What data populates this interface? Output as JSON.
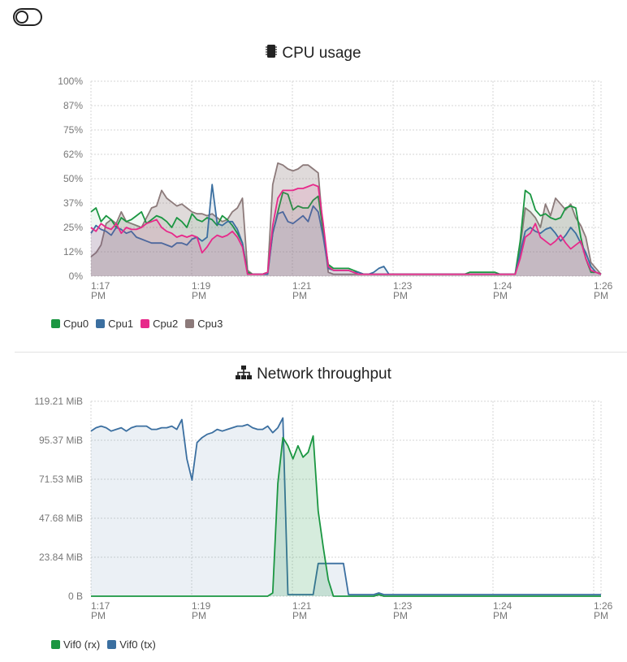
{
  "toggle": {
    "icon": "toggle-icon"
  },
  "charts": [
    {
      "id": "cpu",
      "icon": "cpu-icon",
      "chart_data": {
        "type": "area",
        "title": "CPU usage",
        "x_tick_labels": [
          [
            "1:17",
            "PM"
          ],
          [
            "1:19",
            "PM"
          ],
          [
            "1:21",
            "PM"
          ],
          [
            "1:23",
            "PM"
          ],
          [
            "1:24",
            "PM"
          ],
          [
            "1:26",
            "PM"
          ]
        ],
        "y_tick_labels": [
          "0%",
          "12%",
          "25%",
          "37%",
          "50%",
          "62%",
          "75%",
          "87%",
          "100%"
        ],
        "ylim": [
          0,
          100
        ],
        "grid": true,
        "legend_position": "bottom-left",
        "x_minutes": [
          0,
          0.1,
          0.2,
          0.3,
          0.4,
          0.5,
          0.6,
          0.7,
          0.8,
          0.9,
          1.0,
          1.1,
          1.2,
          1.3,
          1.4,
          1.5,
          1.6,
          1.7,
          1.8,
          1.9,
          2.0,
          2.1,
          2.2,
          2.3,
          2.4,
          2.5,
          2.6,
          2.7,
          2.8,
          2.9,
          3.0,
          3.1,
          3.2,
          3.3,
          3.4,
          3.5,
          3.6,
          3.7,
          3.8,
          3.9,
          4.0,
          4.1,
          4.2,
          4.3,
          4.4,
          4.5,
          4.6,
          4.7,
          4.8,
          4.9,
          5.0,
          5.1,
          5.2,
          5.3,
          5.4,
          5.5,
          5.6,
          5.7,
          5.8,
          5.9,
          6.0,
          6.1,
          6.2,
          6.3,
          6.4,
          6.5,
          6.6,
          6.7,
          6.8,
          6.9,
          7.0,
          7.1,
          7.2,
          7.3,
          7.4,
          7.5,
          7.6,
          7.7,
          7.8,
          7.9,
          8.0,
          8.1,
          8.2,
          8.3,
          8.4,
          8.5,
          8.6,
          8.7,
          8.8,
          8.9,
          9.0,
          9.1,
          9.2,
          9.3,
          9.4,
          9.5,
          9.6,
          9.7,
          9.8,
          9.9,
          10.0,
          10.1
        ],
        "series": [
          {
            "name": "Cpu0",
            "color": "#1a9641",
            "values": [
              33,
              35,
              28,
              31,
              29,
              25,
              30,
              28,
              29,
              31,
              33,
              27,
              29,
              31,
              30,
              28,
              25,
              30,
              28,
              25,
              32,
              29,
              28,
              30,
              29,
              26,
              31,
              29,
              26,
              22,
              17,
              2,
              1,
              1,
              1,
              2,
              22,
              33,
              43,
              42,
              34,
              36,
              35,
              35,
              39,
              41,
              23,
              6,
              4,
              4,
              4,
              4,
              3,
              2,
              1,
              1,
              1,
              1,
              1,
              1,
              1,
              1,
              1,
              1,
              1,
              1,
              1,
              1,
              1,
              1,
              1,
              1,
              1,
              1,
              1,
              2,
              2,
              2,
              2,
              2,
              2,
              1,
              1,
              1,
              1,
              18,
              44,
              42,
              34,
              31,
              32,
              30,
              29,
              30,
              35,
              36,
              35,
              20,
              9,
              2,
              2,
              1
            ]
          },
          {
            "name": "Cpu1",
            "color": "#3b6fa0",
            "values": [
              22,
              26,
              24,
              23,
              21,
              25,
              24,
              22,
              23,
              20,
              19,
              18,
              17,
              17,
              17,
              16,
              15,
              17,
              17,
              16,
              19,
              20,
              18,
              20,
              47,
              27,
              26,
              28,
              28,
              24,
              17,
              1,
              1,
              1,
              1,
              1,
              22,
              32,
              33,
              28,
              27,
              29,
              31,
              28,
              36,
              33,
              20,
              4,
              3,
              3,
              3,
              3,
              2,
              2,
              1,
              1,
              2,
              4,
              5,
              1,
              1,
              1,
              1,
              1,
              1,
              1,
              1,
              1,
              1,
              1,
              1,
              1,
              1,
              1,
              1,
              1,
              1,
              1,
              1,
              1,
              1,
              1,
              1,
              1,
              1,
              12,
              23,
              25,
              23,
              22,
              24,
              25,
              22,
              18,
              21,
              25,
              22,
              17,
              12,
              5,
              2,
              1
            ]
          },
          {
            "name": "Cpu2",
            "color": "#e7298a",
            "values": [
              25,
              23,
              27,
              25,
              24,
              27,
              22,
              25,
              24,
              24,
              25,
              27,
              28,
              29,
              25,
              23,
              22,
              20,
              21,
              20,
              21,
              20,
              12,
              15,
              19,
              21,
              20,
              21,
              23,
              20,
              15,
              1,
              1,
              1,
              1,
              2,
              26,
              40,
              44,
              44,
              44,
              45,
              45,
              46,
              47,
              46,
              27,
              5,
              3,
              3,
              3,
              3,
              2,
              1,
              1,
              1,
              1,
              1,
              1,
              1,
              1,
              1,
              1,
              1,
              1,
              1,
              1,
              1,
              1,
              1,
              1,
              1,
              1,
              1,
              1,
              1,
              1,
              1,
              1,
              1,
              1,
              1,
              1,
              1,
              1,
              9,
              20,
              22,
              27,
              20,
              18,
              16,
              18,
              21,
              17,
              14,
              16,
              18,
              9,
              3,
              2,
              1
            ]
          },
          {
            "name": "Cpu3",
            "color": "#8c7a7a",
            "values": [
              10,
              12,
              16,
              27,
              29,
              27,
              33,
              28,
              27,
              26,
              25,
              30,
              35,
              36,
              44,
              40,
              38,
              36,
              37,
              35,
              33,
              32,
              32,
              31,
              32,
              30,
              28,
              29,
              33,
              35,
              40,
              3,
              1,
              1,
              1,
              2,
              47,
              58,
              57,
              55,
              54,
              55,
              57,
              57,
              55,
              53,
              23,
              2,
              1,
              1,
              1,
              1,
              1,
              1,
              1,
              1,
              1,
              1,
              1,
              1,
              1,
              1,
              1,
              1,
              1,
              1,
              1,
              1,
              1,
              1,
              1,
              1,
              1,
              1,
              1,
              1,
              1,
              1,
              1,
              1,
              1,
              1,
              1,
              1,
              1,
              15,
              35,
              33,
              30,
              25,
              37,
              31,
              40,
              37,
              34,
              37,
              30,
              26,
              20,
              7,
              4,
              1
            ]
          }
        ]
      }
    },
    {
      "id": "net",
      "icon": "network-icon",
      "chart_data": {
        "type": "area",
        "title": "Network throughput",
        "x_tick_labels": [
          [
            "1:17",
            "PM"
          ],
          [
            "1:19",
            "PM"
          ],
          [
            "1:21",
            "PM"
          ],
          [
            "1:23",
            "PM"
          ],
          [
            "1:24",
            "PM"
          ],
          [
            "1:26",
            "PM"
          ]
        ],
        "y_tick_labels": [
          "0 B",
          "23.84 MiB",
          "47.68 MiB",
          "71.53 MiB",
          "95.37 MiB",
          "119.21 MiB"
        ],
        "y_unit": "MiB",
        "ylim": [
          0,
          119.21
        ],
        "grid": true,
        "legend_position": "bottom-left",
        "x_minutes": [
          0,
          0.1,
          0.2,
          0.3,
          0.4,
          0.5,
          0.6,
          0.7,
          0.8,
          0.9,
          1.0,
          1.1,
          1.2,
          1.3,
          1.4,
          1.5,
          1.6,
          1.7,
          1.8,
          1.9,
          2.0,
          2.1,
          2.2,
          2.3,
          2.4,
          2.5,
          2.6,
          2.7,
          2.8,
          2.9,
          3.0,
          3.1,
          3.2,
          3.3,
          3.4,
          3.5,
          3.6,
          3.7,
          3.8,
          3.9,
          4.0,
          4.1,
          4.2,
          4.3,
          4.4,
          4.5,
          4.6,
          4.7,
          4.8,
          4.9,
          5.0,
          5.1,
          5.2,
          5.3,
          5.4,
          5.5,
          5.6,
          5.7,
          5.8,
          5.9,
          6.0,
          6.1,
          6.2,
          6.3,
          6.4,
          6.5,
          6.6,
          6.7,
          6.8,
          6.9,
          7.0,
          7.1,
          7.2,
          7.3,
          7.4,
          7.5,
          7.6,
          7.7,
          7.8,
          7.9,
          8.0,
          8.1,
          8.2,
          8.3,
          8.4,
          8.5,
          8.6,
          8.7,
          8.8,
          8.9,
          9.0,
          9.1,
          9.2,
          9.3,
          9.4,
          9.5,
          9.6,
          9.7,
          9.8,
          9.9,
          10.0,
          10.1
        ],
        "series": [
          {
            "name": "Vif0 (rx)",
            "color": "#1a9641",
            "values": [
              0,
              0,
              0,
              0,
              0,
              0,
              0,
              0,
              0,
              0,
              0,
              0,
              0,
              0,
              0,
              0,
              0,
              0,
              0,
              0,
              0,
              0,
              0,
              0,
              0,
              0,
              0,
              0,
              0,
              0,
              0,
              0,
              0,
              0,
              0,
              0,
              2,
              69,
              97,
              92,
              84,
              92,
              85,
              88,
              98,
              52,
              30,
              10,
              0,
              0,
              0,
              0,
              0,
              0,
              0,
              0,
              0,
              1,
              0,
              0,
              0,
              0,
              0,
              0,
              0,
              0,
              0,
              0,
              0,
              0,
              0,
              0,
              0,
              0,
              0,
              0,
              0,
              0,
              0,
              0,
              0,
              0,
              0,
              0,
              0,
              0,
              0,
              0,
              0,
              0,
              0,
              0,
              0,
              0,
              0,
              0,
              0,
              0,
              0,
              0,
              0,
              0
            ]
          },
          {
            "name": "Vif0 (tx)",
            "color": "#3b6fa0",
            "values": [
              101,
              103,
              104,
              103,
              101,
              102,
              103,
              101,
              103,
              104,
              104,
              104,
              102,
              102,
              103,
              103,
              104,
              102,
              108,
              84,
              71,
              94,
              97,
              99,
              100,
              102,
              101,
              102,
              103,
              104,
              104,
              105,
              103,
              102,
              102,
              104,
              100,
              103,
              109,
              1,
              1,
              1,
              1,
              1,
              1,
              20,
              20,
              20,
              20,
              20,
              20,
              1,
              1,
              1,
              1,
              1,
              1,
              2,
              1,
              1,
              1,
              1,
              1,
              1,
              1,
              1,
              1,
              1,
              1,
              1,
              1,
              1,
              1,
              1,
              1,
              1,
              1,
              1,
              1,
              1,
              1,
              1,
              1,
              1,
              1,
              1,
              1,
              1,
              1,
              1,
              1,
              1,
              1,
              1,
              1,
              1,
              1,
              1,
              1,
              1,
              1,
              1
            ]
          }
        ]
      }
    }
  ]
}
